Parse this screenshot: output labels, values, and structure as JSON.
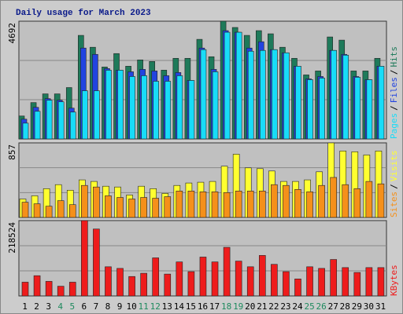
{
  "title": "Daily usage for March 2023",
  "legend_separator": "/",
  "highlight": {
    "color": "#1e8a5e",
    "indices": [
      3,
      4,
      10,
      11,
      17,
      18,
      24,
      25
    ]
  },
  "chart_data": [
    {
      "type": "bar",
      "ylim": [
        0,
        4692
      ],
      "yticks": [
        4692
      ],
      "series": [
        {
          "name": "Hits",
          "color": "#1e7a5a",
          "values": [
            914,
            1449,
            1796,
            1796,
            2048,
            4127,
            3654,
            2867,
            3402,
            2898,
            3150,
            3087,
            2741,
            3213,
            3213,
            3969,
            3276,
            4692,
            4442,
            4127,
            4316,
            4190,
            3654,
            3213,
            2552,
            2709,
            4064,
            3938,
            2709,
            2709,
            3213
          ]
        },
        {
          "name": "Files",
          "color": "#2244e0",
          "values": [
            788,
            1260,
            1606,
            1544,
            1228,
            3622,
            3370,
            2803,
            2740,
            2677,
            2772,
            2709,
            2520,
            2646,
            2331,
            3622,
            2772,
            4315,
            4252,
            3622,
            3874,
            3559,
            3433,
            2898,
            2394,
            2488,
            3528,
            3370,
            2488,
            2362,
            2898
          ]
        },
        {
          "name": "Pages",
          "color": "#18dcf8",
          "values": [
            630,
            1102,
            1544,
            1480,
            1071,
            1921,
            1921,
            2740,
            2740,
            2488,
            2520,
            2299,
            2299,
            2520,
            2331,
            3559,
            2677,
            4252,
            4252,
            3496,
            3528,
            3559,
            3433,
            2898,
            2362,
            2425,
            3528,
            3339,
            2457,
            2362,
            2898
          ]
        }
      ]
    },
    {
      "type": "bar",
      "ylim": [
        0,
        857
      ],
      "yticks": [
        857
      ],
      "series": [
        {
          "name": "Visits",
          "color": "#ffff30",
          "values": [
            212,
            249,
            331,
            377,
            313,
            432,
            414,
            359,
            350,
            258,
            359,
            331,
            276,
            368,
            396,
            405,
            414,
            589,
            727,
            570,
            561,
            534,
            414,
            414,
            432,
            525,
            857,
            764,
            755,
            718,
            764
          ]
        },
        {
          "name": "Sites",
          "color": "#f5901a",
          "values": [
            175,
            157,
            129,
            193,
            147,
            368,
            350,
            249,
            230,
            212,
            230,
            221,
            239,
            304,
            304,
            295,
            295,
            286,
            304,
            304,
            304,
            377,
            368,
            322,
            295,
            368,
            460,
            377,
            331,
            414,
            386
          ]
        }
      ]
    },
    {
      "type": "bar",
      "ylim": [
        0,
        218524
      ],
      "yticks": [
        218524
      ],
      "categories": [
        "1",
        "2",
        "3",
        "4",
        "5",
        "6",
        "7",
        "8",
        "9",
        "10",
        "11",
        "12",
        "13",
        "14",
        "15",
        "16",
        "17",
        "18",
        "19",
        "20",
        "21",
        "22",
        "23",
        "24",
        "25",
        "26",
        "27",
        "28",
        "29",
        "30",
        "31"
      ],
      "series": [
        {
          "name": "KBytes",
          "color": "#ee1c1c",
          "values": [
            39950,
            58750,
            42300,
            28200,
            39950,
            218524,
            194050,
            84600,
            79900,
            56400,
            65800,
            110450,
            63450,
            98700,
            70500,
            112800,
            98700,
            141000,
            101050,
            84600,
            117500,
            91650,
            70500,
            49350,
            84600,
            79900,
            105750,
            82250,
            68150,
            82250,
            82250
          ]
        }
      ]
    }
  ]
}
